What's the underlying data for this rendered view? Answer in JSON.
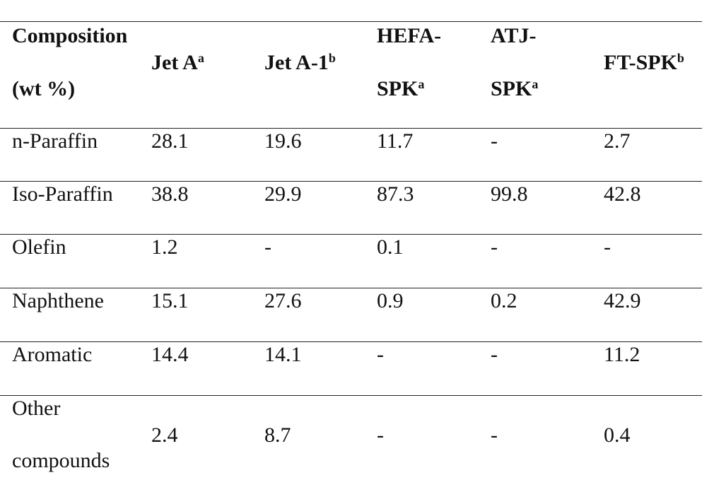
{
  "table": {
    "header": [
      {
        "lines": [
          "Composition",
          "(wt %)"
        ]
      },
      {
        "lines": [
          "Jet A"
        ],
        "sup": "a"
      },
      {
        "lines": [
          "Jet A-1"
        ],
        "sup": "b"
      },
      {
        "lines": [
          "HEFA-",
          "SPK"
        ],
        "sup": "a"
      },
      {
        "lines": [
          "ATJ-",
          "SPK"
        ],
        "sup": "a"
      },
      {
        "lines": [
          "FT-SPK"
        ],
        "sup": "b"
      }
    ],
    "rows": [
      [
        "n-Paraffin",
        28.1,
        19.6,
        11.7,
        "-",
        2.7
      ],
      [
        "Iso-Paraffin",
        38.8,
        29.9,
        87.3,
        99.8,
        42.8
      ],
      [
        "Olefin",
        1.2,
        "-",
        0.1,
        "-",
        "-"
      ],
      [
        "Naphthene",
        15.1,
        27.6,
        0.9,
        0.2,
        42.9
      ],
      [
        "Aromatic",
        14.4,
        14.1,
        "-",
        "-",
        11.2
      ],
      [
        "Other compounds",
        2.4,
        8.7,
        "-",
        "-",
        0.4
      ]
    ]
  }
}
